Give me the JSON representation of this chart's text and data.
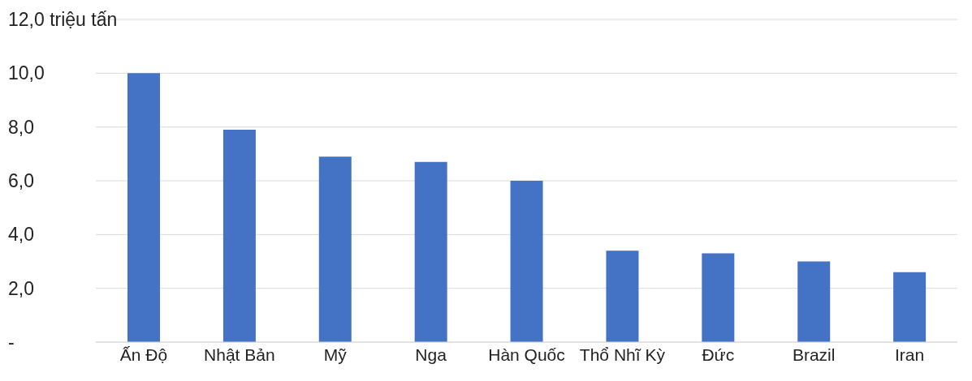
{
  "chart_data": {
    "type": "bar",
    "categories": [
      "Ấn Độ",
      "Nhật Bản",
      "Mỹ",
      "Nga",
      "Hàn Quốc",
      "Thổ Nhĩ Kỳ",
      "Đức",
      "Brazil",
      "Iran"
    ],
    "values": [
      10.0,
      7.9,
      6.9,
      6.7,
      6.0,
      3.4,
      3.3,
      3.0,
      2.6
    ],
    "color": "#4472c4",
    "ylim": [
      0,
      12
    ],
    "yticks": [
      {
        "value": 0,
        "label": "-"
      },
      {
        "value": 2,
        "label": "2,0"
      },
      {
        "value": 4,
        "label": "4,0"
      },
      {
        "value": 6,
        "label": "6,0"
      },
      {
        "value": 8,
        "label": "8,0"
      },
      {
        "value": 10,
        "label": "10,0"
      },
      {
        "value": 12,
        "label": "12,0 triệu tấn"
      }
    ],
    "grid": "y"
  }
}
